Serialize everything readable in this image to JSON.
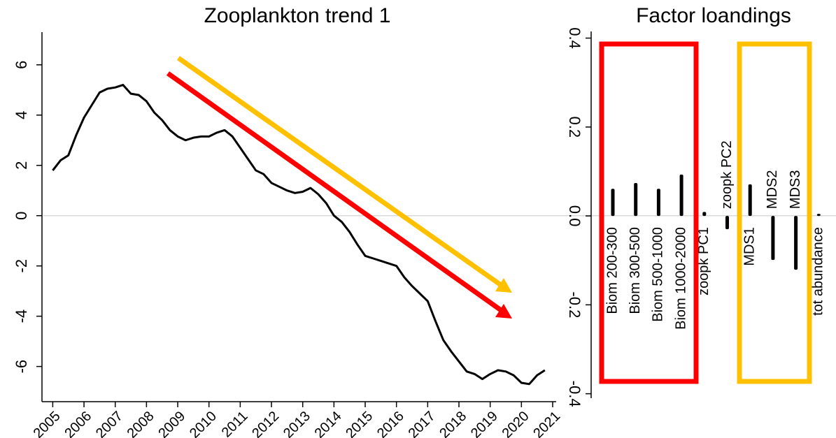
{
  "chart_data": [
    {
      "type": "line",
      "title": "Zooplankton trend 1",
      "x": [
        2005,
        2005.25,
        2005.5,
        2005.75,
        2006,
        2006.25,
        2006.5,
        2006.75,
        2007,
        2007.25,
        2007.5,
        2007.75,
        2008,
        2008.25,
        2008.5,
        2008.75,
        2009,
        2009.25,
        2009.5,
        2009.75,
        2010,
        2010.25,
        2010.5,
        2010.75,
        2011,
        2011.25,
        2011.5,
        2011.75,
        2012,
        2012.25,
        2012.5,
        2012.75,
        2013,
        2013.25,
        2013.5,
        2013.75,
        2014,
        2014.25,
        2014.5,
        2014.75,
        2015,
        2015.25,
        2015.5,
        2015.75,
        2016,
        2016.25,
        2016.5,
        2016.75,
        2017,
        2017.25,
        2017.5,
        2017.75,
        2018,
        2018.25,
        2018.5,
        2018.75,
        2019,
        2019.25,
        2019.5,
        2019.75,
        2020,
        2020.25,
        2020.5,
        2020.75
      ],
      "series": [
        {
          "color": "#000000",
          "values": [
            1.8,
            2.2,
            2.4,
            3.2,
            3.9,
            4.4,
            4.9,
            5.05,
            5.1,
            5.2,
            4.85,
            4.8,
            4.55,
            4.1,
            3.8,
            3.4,
            3.15,
            3.0,
            3.1,
            3.15,
            3.15,
            3.3,
            3.4,
            3.15,
            2.7,
            2.25,
            1.8,
            1.65,
            1.3,
            1.15,
            1.0,
            0.9,
            0.95,
            1.1,
            0.85,
            0.5,
            0.0,
            -0.25,
            -0.65,
            -1.15,
            -1.6,
            -1.7,
            -1.8,
            -1.9,
            -2.0,
            -2.45,
            -2.8,
            -3.1,
            -3.4,
            -4.2,
            -4.95,
            -5.4,
            -5.8,
            -6.2,
            -6.3,
            -6.5,
            -6.3,
            -6.15,
            -6.2,
            -6.35,
            -6.65,
            -6.7,
            -6.35,
            -6.15
          ]
        }
      ],
      "xlim": [
        2004.7,
        2021
      ],
      "xticks": [
        2005,
        2006,
        2007,
        2008,
        2009,
        2010,
        2011,
        2012,
        2013,
        2014,
        2015,
        2016,
        2017,
        2018,
        2019,
        2020,
        2021
      ],
      "ylim": [
        -7.4,
        7.3
      ],
      "yticks": [
        -6,
        -4,
        -2,
        0,
        2,
        4,
        6
      ],
      "hline": 0
    },
    {
      "type": "bar",
      "title": "Factor loandings",
      "categories": [
        "Biom 200-300",
        "Biom 300-500",
        "Biom 500-1000",
        "Biom 1000-2000",
        "zoopk PC1",
        "zoopk PC2",
        "MDS1",
        "MDS2",
        "MDS3",
        "tot abundance"
      ],
      "values": [
        0.061,
        0.074,
        0.061,
        0.093,
        0.009,
        -0.03,
        0.071,
        -0.099,
        -0.121,
        0.004
      ],
      "color": "#000000",
      "ylim": [
        -0.41,
        0.415
      ],
      "yticks": [
        -0.4,
        -0.2,
        {
          "value": 0,
          "label": "0.0"
        },
        0.2,
        0.4
      ]
    }
  ]
}
